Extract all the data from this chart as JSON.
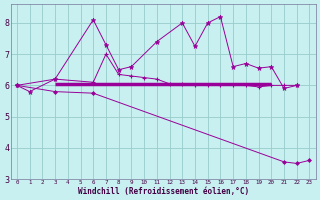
{
  "xlabel": "Windchill (Refroidissement éolien,°C)",
  "line1_x": [
    0,
    1,
    3,
    6,
    7,
    8,
    9,
    11,
    13,
    14,
    15,
    16,
    17,
    18,
    19,
    20,
    21,
    22
  ],
  "line1_y": [
    6.0,
    5.8,
    6.2,
    8.1,
    7.3,
    6.5,
    6.6,
    7.4,
    8.0,
    7.25,
    8.0,
    8.2,
    6.6,
    6.7,
    6.55,
    6.6,
    5.9,
    6.0
  ],
  "line2_x": [
    0,
    3,
    6,
    7,
    8,
    9,
    10,
    11,
    12,
    13,
    14,
    15,
    16,
    17,
    18,
    19,
    20,
    21,
    22
  ],
  "line2_y": [
    6.0,
    6.2,
    6.1,
    7.0,
    6.35,
    6.3,
    6.25,
    6.2,
    6.05,
    6.05,
    6.0,
    6.0,
    6.0,
    6.0,
    6.0,
    5.95,
    6.0,
    6.0,
    6.0
  ],
  "line3_x": [
    0,
    3,
    6,
    21,
    22,
    23
  ],
  "line3_y": [
    6.0,
    5.8,
    5.75,
    3.55,
    3.5,
    3.6
  ],
  "hline_x": [
    3,
    20
  ],
  "hline_y": [
    6.05,
    6.05
  ],
  "bg_color": "#c8f0f0",
  "line_color": "#990099",
  "grid_color": "#99cccc",
  "ylim": [
    3.0,
    8.6
  ],
  "xlim": [
    -0.5,
    23.5
  ]
}
